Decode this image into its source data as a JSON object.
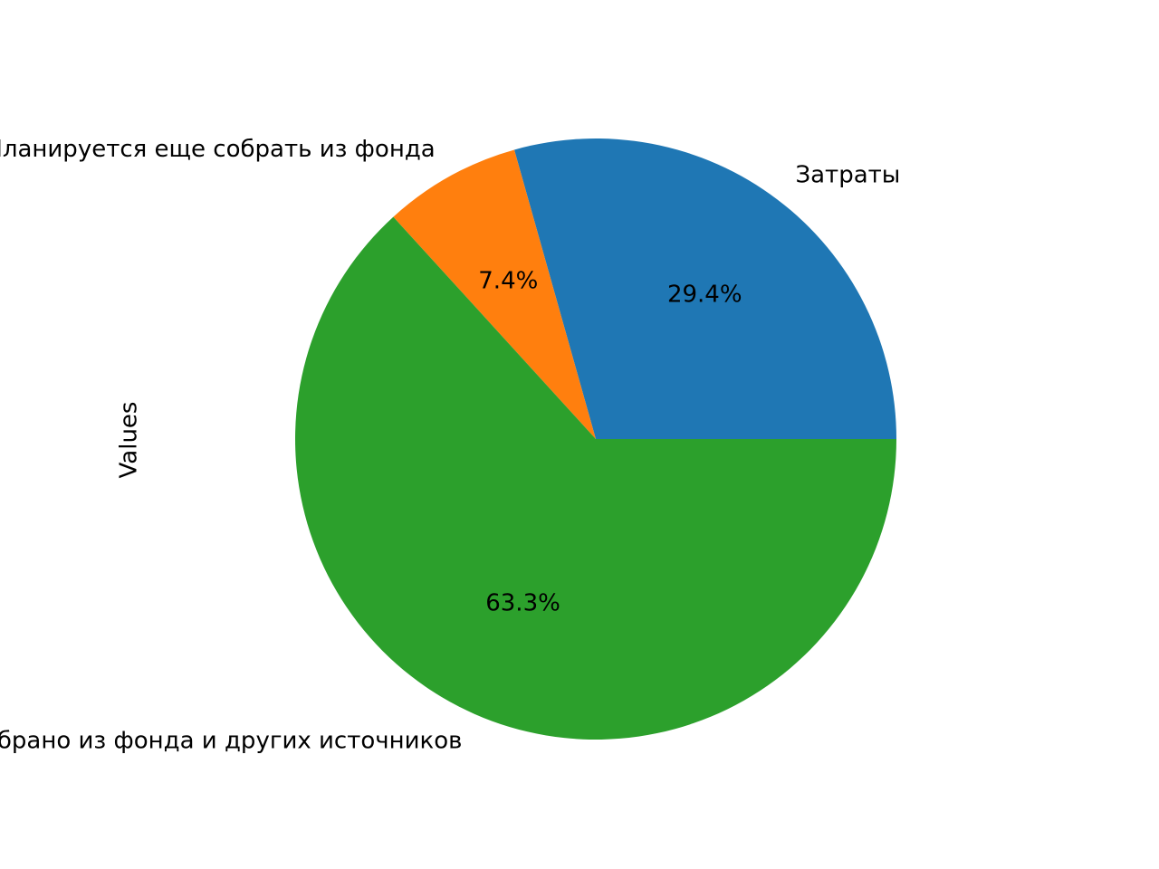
{
  "chart_data": {
    "type": "pie",
    "ylabel": "Values",
    "slices": [
      {
        "label": "Затраты",
        "percent": 29.4,
        "percent_label": "29.4%",
        "color": "#1f77b4"
      },
      {
        "label": "Планируется еще собрать из фонда",
        "percent": 7.4,
        "percent_label": "7.4%",
        "color": "#ff7f0e"
      },
      {
        "label": "Собрано из фонда и других источников",
        "percent": 63.3,
        "percent_label": "63.3%",
        "color": "#2ca02c"
      }
    ],
    "start_angle_deg": 0,
    "direction": "counterclockwise"
  }
}
